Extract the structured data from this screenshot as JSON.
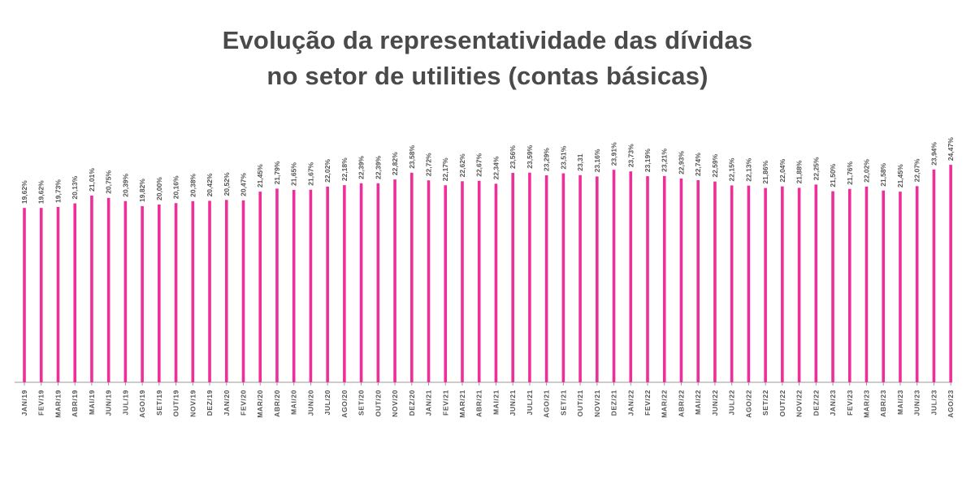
{
  "title": {
    "line1": "Evolução da representatividade das dívidas",
    "line2": "no setor de utilities (contas básicas)"
  },
  "colors": {
    "bar": "#ee2f9a",
    "axis": "#9a9a9a",
    "label": "#555555",
    "title": "#4a4a4a"
  },
  "chart_data": {
    "type": "bar",
    "title": "Evolução da representatividade das dívidas no setor de utilities (contas básicas)",
    "xlabel": "",
    "ylabel": "",
    "ylim": [
      0,
      25
    ],
    "grid": false,
    "categories": [
      "JAN/19",
      "FEV/19",
      "MAR/19",
      "ABR/19",
      "MAI/19",
      "JUN/19",
      "JUL/19",
      "AGO/19",
      "SET/19",
      "OUT/19",
      "NOV/19",
      "DEZ/19",
      "JAN/20",
      "FEV/20",
      "MAR/20",
      "ABR/20",
      "MAI/20",
      "JUN/20",
      "JUL/20",
      "AGO/20",
      "SET/20",
      "OUT/20",
      "NOV/20",
      "DEZ/20",
      "JAN/21",
      "FEV/21",
      "MAR/21",
      "ABR/21",
      "MAI/21",
      "JUN/21",
      "JUL/21",
      "AGO/21",
      "SET/21",
      "OUT/21",
      "NOV/21",
      "DEZ/21",
      "JAN/22",
      "FEV/22",
      "MAR/22",
      "ABR/22",
      "MAI/22",
      "JUN/22",
      "JUL/22",
      "AGO/22",
      "SET/22",
      "OUT/22",
      "NOV/22",
      "DEZ/22",
      "JAN/23",
      "FEV/23",
      "MAR/23",
      "ABR/23",
      "MAI/23",
      "JUN/23",
      "JUL/23",
      "AGO/23"
    ],
    "values": [
      19.62,
      19.62,
      19.73,
      20.13,
      21.01,
      20.75,
      20.39,
      19.82,
      20.0,
      20.16,
      20.38,
      20.42,
      20.52,
      20.47,
      21.45,
      21.79,
      21.65,
      21.67,
      22.02,
      22.18,
      22.39,
      22.39,
      22.82,
      23.58,
      22.72,
      22.17,
      22.62,
      22.67,
      22.34,
      23.56,
      23.59,
      23.29,
      23.51,
      23.31,
      23.16,
      23.91,
      23.73,
      23.19,
      23.21,
      22.93,
      22.74,
      22.59,
      22.15,
      22.13,
      21.86,
      22.04,
      21.88,
      22.25,
      21.5,
      21.76,
      22.02,
      21.58,
      21.45,
      22.07,
      23.94,
      24.47
    ],
    "value_labels": [
      "19,62%",
      "19,62%",
      "19,73%",
      "20,13%",
      "21,01%",
      "20,75%",
      "20,39%",
      "19,82%",
      "20,00%",
      "20,16%",
      "20,38%",
      "20,42%",
      "20,52%",
      "20,47%",
      "21,45%",
      "21,79%",
      "21,65%",
      "21,67%",
      "22,02%",
      "22,18%",
      "22,39%",
      "22,39%",
      "22,82%",
      "23,58%",
      "22,72%",
      "22,17%",
      "22,62%",
      "22,67%",
      "22,34%",
      "23,56%",
      "23,59%",
      "23,29%",
      "23,51%",
      "23,31",
      "23,16%",
      "23,91%",
      "23,73%",
      "23,19%",
      "23,21%",
      "22,93%",
      "22,74%",
      "22,59%",
      "22,15%",
      "22,13%",
      "21,86%",
      "22,04%",
      "21,88%",
      "22,25%",
      "21,50%",
      "21,76%",
      "22,02%",
      "21,58%",
      "21,45%",
      "22,07%",
      "23,94%",
      "24,47%"
    ]
  }
}
